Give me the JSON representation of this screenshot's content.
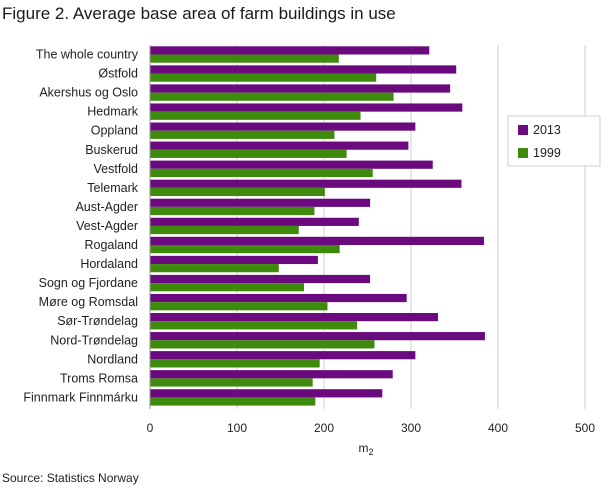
{
  "figure": {
    "title": "Figure 2. Average base area of farm buildings in use",
    "source": "Source: Statistics Norway"
  },
  "colors": {
    "series_2013": "#6a0a7e",
    "series_1999": "#3d8a0d",
    "grid": "#cfcfcf",
    "axis": "#999999"
  },
  "chart_data": {
    "type": "bar",
    "orientation": "horizontal",
    "title": "",
    "xlabel": "m2",
    "ylabel": "",
    "xlim": [
      0,
      500
    ],
    "xticks": [
      0,
      100,
      200,
      300,
      400,
      500
    ],
    "grid": true,
    "legend_position": "right",
    "categories": [
      "The whole country",
      "Østfold",
      "Akershus og Oslo",
      "Hedmark",
      "Oppland",
      "Buskerud",
      "Vestfold",
      "Telemark",
      "Aust-Agder",
      "Vest-Agder",
      "Rogaland",
      "Hordaland",
      "Sogn og Fjordane",
      "Møre og Romsdal",
      "Sør-Trøndelag",
      "Nord-Trøndelag",
      "Nordland",
      "Troms Romsa",
      "Finnmark Finnmárku"
    ],
    "series": [
      {
        "name": "2013",
        "values": [
          321,
          352,
          345,
          359,
          305,
          297,
          325,
          358,
          253,
          240,
          384,
          193,
          253,
          295,
          331,
          385,
          305,
          279,
          267
        ]
      },
      {
        "name": "1999",
        "values": [
          217,
          260,
          280,
          242,
          212,
          226,
          256,
          201,
          189,
          171,
          218,
          148,
          177,
          204,
          238,
          258,
          195,
          187,
          190
        ]
      }
    ]
  }
}
